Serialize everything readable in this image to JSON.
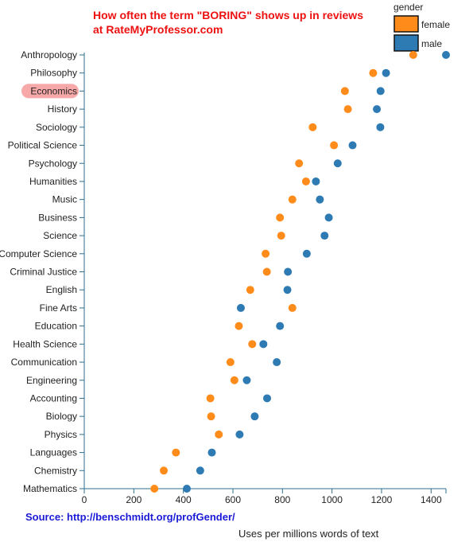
{
  "chart_data": {
    "type": "scatter",
    "title_lines": [
      "How often the term \"BORING\" shows up in reviews",
      "at RateMyProfessor.com"
    ],
    "source": "Source: http://benschmidt.org/profGender/",
    "xlabel": "Uses per millions words of text",
    "ylabel": "",
    "xlim": [
      0,
      1460
    ],
    "x_ticks": [
      0,
      200,
      400,
      600,
      800,
      1000,
      1200,
      1400
    ],
    "highlighted_category": "Economics",
    "legend": {
      "title": "gender",
      "placement": "top-right",
      "items": [
        {
          "name": "female",
          "color": "#ff8c1a"
        },
        {
          "name": "male",
          "color": "#2e7bb4"
        }
      ]
    },
    "categories": [
      "Anthropology",
      "Philosophy",
      "Economics",
      "History",
      "Sociology",
      "Political Science",
      "Psychology",
      "Humanities",
      "Music",
      "Business",
      "Science",
      "Computer Science",
      "Criminal Justice",
      "English",
      "Fine Arts",
      "Education",
      "Health Science",
      "Communication",
      "Engineering",
      "Accounting",
      "Biology",
      "Physics",
      "Languages",
      "Chemistry",
      "Mathematics"
    ],
    "series": [
      {
        "name": "female",
        "color": "#ff8c1a",
        "values": [
          1328,
          1166,
          1052,
          1064,
          922,
          1008,
          867,
          895,
          840,
          790,
          795,
          732,
          737,
          670,
          840,
          624,
          678,
          590,
          606,
          509,
          512,
          543,
          370,
          321,
          283
        ]
      },
      {
        "name": "male",
        "color": "#2e7bb4",
        "values": [
          1460,
          1218,
          1196,
          1181,
          1195,
          1083,
          1023,
          935,
          951,
          987,
          970,
          898,
          822,
          820,
          632,
          790,
          723,
          777,
          656,
          738,
          688,
          627,
          515,
          468,
          414
        ]
      }
    ]
  }
}
